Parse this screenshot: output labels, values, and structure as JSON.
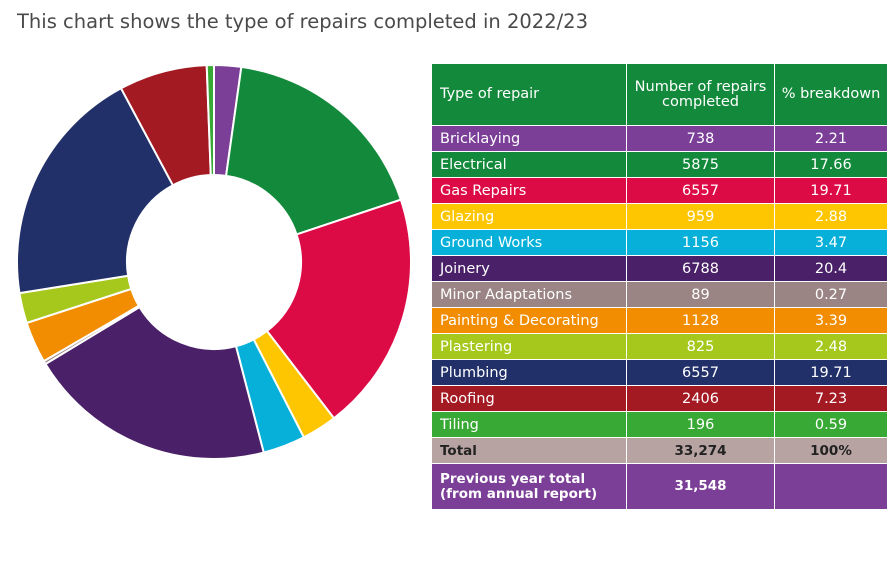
{
  "title": "This chart shows the type of repairs completed in 2022/23",
  "table": {
    "headers": {
      "type": "Type of repair",
      "number": "Number of repairs completed",
      "percent": "% breakdown"
    },
    "rows": [
      {
        "type": "Bricklaying",
        "number": "738",
        "percent": "2.21",
        "color": "#7b3f98"
      },
      {
        "type": "Electrical",
        "number": "5875",
        "percent": "17.66",
        "color": "#138a3b"
      },
      {
        "type": "Gas Repairs",
        "number": "6557",
        "percent": "19.71",
        "color": "#dc0a45"
      },
      {
        "type": "Glazing",
        "number": "959",
        "percent": "2.88",
        "color": "#fdc600"
      },
      {
        "type": "Ground Works",
        "number": "1156",
        "percent": "3.47",
        "color": "#06b0d8"
      },
      {
        "type": "Joinery",
        "number": "6788",
        "percent": "20.4",
        "color": "#4a2168"
      },
      {
        "type": "Minor Adaptations",
        "number": "89",
        "percent": "0.27",
        "color": "#9a8584"
      },
      {
        "type": "Painting & Decorating",
        "number": "1128",
        "percent": "3.39",
        "color": "#f28c00"
      },
      {
        "type": "Plastering",
        "number": "825",
        "percent": "2.48",
        "color": "#a6c81d"
      },
      {
        "type": "Plumbing",
        "number": "6557",
        "percent": "19.71",
        "color": "#213068"
      },
      {
        "type": "Roofing",
        "number": "2406",
        "percent": "7.23",
        "color": "#a31a23"
      },
      {
        "type": "Tiling",
        "number": "196",
        "percent": "0.59",
        "color": "#39a935"
      }
    ],
    "total": {
      "label": "Total",
      "number": "33,274",
      "percent": "100%",
      "color": "#b8a3a3"
    },
    "previous": {
      "label": "Previous year total (from annual report)",
      "number": "31,548",
      "percent": "",
      "color": "#7b3f98"
    },
    "header_color": "#138a3b"
  },
  "chart_data": {
    "type": "pie",
    "subtype": "donut",
    "categories": [
      "Bricklaying",
      "Electrical",
      "Gas Repairs",
      "Glazing",
      "Ground Works",
      "Joinery",
      "Minor Adaptations",
      "Painting & Decorating",
      "Plastering",
      "Plumbing",
      "Roofing",
      "Tiling"
    ],
    "values": [
      738,
      5875,
      6557,
      959,
      1156,
      6788,
      89,
      1128,
      825,
      6557,
      2406,
      196
    ],
    "colors": [
      "#7b3f98",
      "#138a3b",
      "#dc0a45",
      "#fdc600",
      "#06b0d8",
      "#4a2168",
      "#9a8584",
      "#f28c00",
      "#a6c81d",
      "#213068",
      "#a31a23",
      "#39a935"
    ],
    "direction": "clockwise from top"
  }
}
